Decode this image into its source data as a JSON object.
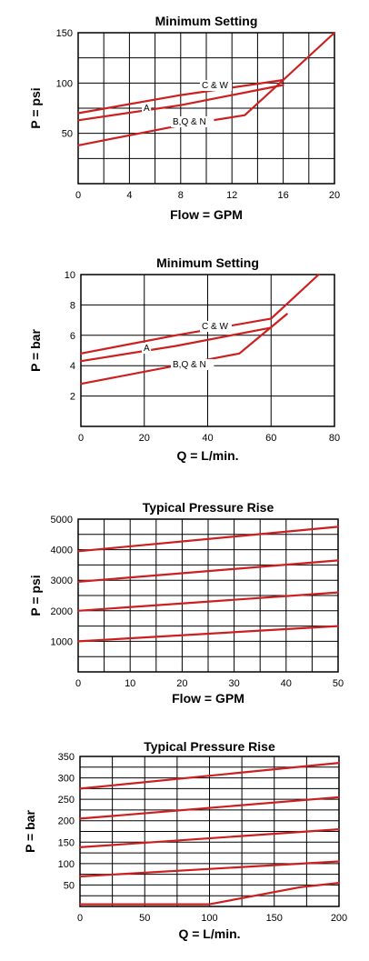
{
  "chart_data": [
    {
      "type": "line",
      "title": "Minimum Setting",
      "xlabel": "Flow = GPM",
      "ylabel": "P = psi",
      "xlim": [
        0,
        20
      ],
      "ylim": [
        0,
        150
      ],
      "xticks": [
        0,
        4,
        8,
        12,
        16,
        20
      ],
      "yticks": [
        50,
        100,
        150
      ],
      "x_grid": [
        0,
        2,
        4,
        6,
        8,
        10,
        12,
        14,
        16,
        18,
        20
      ],
      "y_grid": [
        0,
        25,
        50,
        75,
        100,
        125,
        150
      ],
      "grid": true,
      "series": [
        {
          "name": "C & W",
          "x": [
            0,
            8,
            16,
            20
          ],
          "y": [
            70,
            88,
            103,
            150
          ]
        },
        {
          "name": "A",
          "x": [
            0,
            8,
            16
          ],
          "y": [
            63,
            78,
            98
          ]
        },
        {
          "name": "B,Q & N",
          "x": [
            0,
            8,
            13,
            16
          ],
          "y": [
            38,
            58,
            68,
            103
          ]
        }
      ],
      "annotations": [
        "C & W",
        "A",
        "B,Q & N"
      ]
    },
    {
      "type": "line",
      "title": "Minimum Setting",
      "xlabel": "Q = L/min.",
      "ylabel": "P = bar",
      "xlim": [
        0,
        80
      ],
      "ylim": [
        0,
        10
      ],
      "xticks": [
        0,
        20,
        40,
        60,
        80
      ],
      "yticks": [
        2,
        4,
        6,
        8,
        10
      ],
      "x_grid": [
        0,
        20,
        40,
        60,
        80
      ],
      "y_grid": [
        0,
        2,
        4,
        6,
        8,
        10
      ],
      "grid": true,
      "series": [
        {
          "name": "C & W",
          "x": [
            0,
            30,
            60,
            75
          ],
          "y": [
            4.8,
            6.0,
            7.1,
            10.0
          ]
        },
        {
          "name": "A",
          "x": [
            0,
            30,
            60
          ],
          "y": [
            4.3,
            5.3,
            6.5
          ]
        },
        {
          "name": "B,Q & N",
          "x": [
            0,
            30,
            50,
            65
          ],
          "y": [
            2.8,
            4.0,
            4.8,
            7.4
          ]
        }
      ],
      "annotations": [
        "C & W",
        "A",
        "B,Q & N"
      ]
    },
    {
      "type": "line",
      "title": "Typical Pressure Rise",
      "xlabel": "Flow = GPM",
      "ylabel": "P = psi",
      "xlim": [
        0,
        50
      ],
      "ylim": [
        0,
        5000
      ],
      "xticks": [
        0,
        10,
        20,
        30,
        40,
        50
      ],
      "yticks": [
        1000,
        2000,
        3000,
        4000,
        5000
      ],
      "x_grid": [
        0,
        5,
        10,
        15,
        20,
        25,
        30,
        35,
        40,
        45,
        50
      ],
      "y_grid": [
        0,
        500,
        1000,
        1500,
        2000,
        2500,
        3000,
        3500,
        4000,
        4500,
        5000
      ],
      "grid": true,
      "series": [
        {
          "x": [
            0,
            50
          ],
          "y": [
            3950,
            4750
          ]
        },
        {
          "x": [
            0,
            50
          ],
          "y": [
            2950,
            3650
          ]
        },
        {
          "x": [
            0,
            50
          ],
          "y": [
            2000,
            2600
          ]
        },
        {
          "x": [
            0,
            50
          ],
          "y": [
            1000,
            1500
          ]
        }
      ]
    },
    {
      "type": "line",
      "title": "Typical Pressure Rise",
      "xlabel": "Q = L/min.",
      "ylabel": "P = bar",
      "xlim": [
        0,
        200
      ],
      "ylim": [
        0,
        350
      ],
      "xticks": [
        0,
        50,
        100,
        150,
        200
      ],
      "yticks": [
        50,
        100,
        150,
        200,
        250,
        300,
        350
      ],
      "x_grid": [
        0,
        25,
        50,
        75,
        100,
        125,
        150,
        175,
        200
      ],
      "y_grid": [
        0,
        25,
        50,
        75,
        100,
        125,
        150,
        175,
        200,
        225,
        250,
        275,
        300,
        325,
        350
      ],
      "grid": true,
      "series": [
        {
          "x": [
            0,
            200
          ],
          "y": [
            275,
            335
          ]
        },
        {
          "x": [
            0,
            200
          ],
          "y": [
            205,
            255
          ]
        },
        {
          "x": [
            0,
            200
          ],
          "y": [
            138,
            180
          ]
        },
        {
          "x": [
            0,
            200
          ],
          "y": [
            70,
            105
          ]
        },
        {
          "x": [
            0,
            100,
            170,
            200
          ],
          "y": [
            5,
            5,
            45,
            55
          ]
        }
      ]
    }
  ]
}
